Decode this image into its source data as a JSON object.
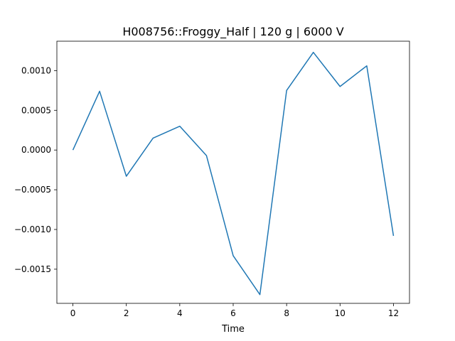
{
  "chart_data": {
    "type": "line",
    "title": "H008756::Froggy_Half | 120 g | 6000 V",
    "xlabel": "Time",
    "ylabel": "",
    "x": [
      0,
      1,
      2,
      3,
      4,
      5,
      6,
      7,
      8,
      9,
      10,
      11,
      12
    ],
    "series": [
      {
        "values": [
          0.0,
          0.00074,
          -0.00033,
          0.00015,
          0.0003,
          -7e-05,
          -0.00133,
          -0.00182,
          0.00075,
          0.00123,
          0.0008,
          0.00106,
          -0.00108
        ],
        "color": "#1f77b4"
      }
    ],
    "xlim": [
      -0.6,
      12.6
    ],
    "ylim": [
      -0.00193,
      0.00137
    ],
    "x_ticks": [
      0,
      2,
      4,
      6,
      8,
      10,
      12
    ],
    "x_tick_labels": [
      "0",
      "2",
      "4",
      "6",
      "8",
      "10",
      "12"
    ],
    "y_ticks": [
      0.001,
      0.0005,
      0.0,
      -0.0005,
      -0.001,
      -0.0015
    ],
    "y_tick_labels": [
      "0.0010",
      "0.0005",
      "0.0000",
      "−0.0005",
      "−0.0010",
      "−0.0015"
    ],
    "grid": false,
    "legend": false
  }
}
